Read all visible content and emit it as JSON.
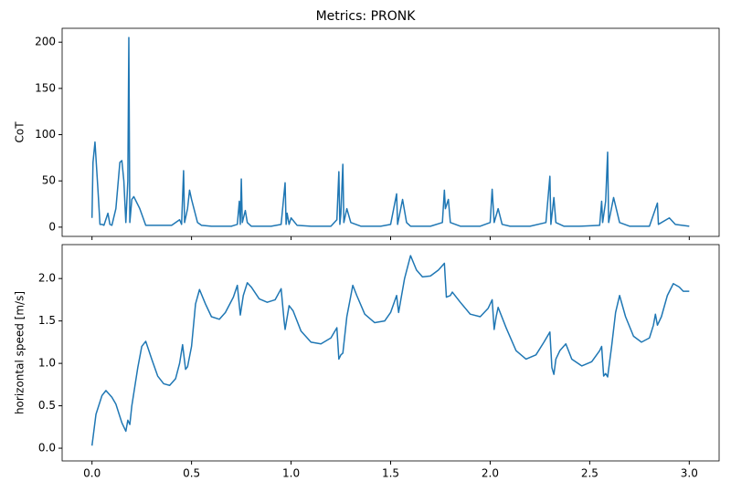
{
  "chart_data": [
    {
      "type": "line",
      "title": "Metrics: PRONK",
      "ylabel": "CoT",
      "color": "#1f77b4",
      "x": [
        0,
        0.005,
        0.015,
        0.03,
        0.04,
        0.05,
        0.06,
        0.08,
        0.09,
        0.1,
        0.12,
        0.14,
        0.15,
        0.16,
        0.17,
        0.18,
        0.185,
        0.19,
        0.2,
        0.21,
        0.24,
        0.27,
        0.3,
        0.35,
        0.4,
        0.44,
        0.45,
        0.46,
        0.465,
        0.48,
        0.49,
        0.5,
        0.53,
        0.55,
        0.6,
        0.65,
        0.7,
        0.73,
        0.74,
        0.745,
        0.75,
        0.755,
        0.77,
        0.78,
        0.8,
        0.85,
        0.9,
        0.95,
        0.97,
        0.975,
        0.98,
        0.99,
        1.0,
        1.03,
        1.1,
        1.2,
        1.23,
        1.24,
        1.245,
        1.25,
        1.26,
        1.265,
        1.28,
        1.3,
        1.35,
        1.45,
        1.5,
        1.53,
        1.535,
        1.56,
        1.58,
        1.6,
        1.7,
        1.76,
        1.77,
        1.775,
        1.79,
        1.8,
        1.85,
        1.95,
        2.0,
        2.01,
        2.02,
        2.04,
        2.06,
        2.1,
        2.2,
        2.28,
        2.3,
        2.305,
        2.32,
        2.33,
        2.37,
        2.45,
        2.55,
        2.56,
        2.565,
        2.58,
        2.59,
        2.595,
        2.62,
        2.65,
        2.7,
        2.8,
        2.84,
        2.845,
        2.9,
        2.93,
        3.0
      ],
      "values": [
        10,
        70,
        92,
        40,
        3,
        3,
        2,
        15,
        3,
        2,
        20,
        70,
        72,
        50,
        5,
        50,
        205,
        5,
        30,
        33,
        20,
        2,
        2,
        2,
        2,
        8,
        3,
        61,
        5,
        20,
        40,
        30,
        5,
        2,
        1,
        1,
        1,
        3,
        28,
        3,
        52,
        5,
        18,
        5,
        1,
        1,
        1,
        3,
        48,
        3,
        15,
        3,
        10,
        2,
        1,
        1,
        8,
        60,
        3,
        14,
        68,
        5,
        20,
        5,
        1,
        1,
        3,
        36,
        3,
        30,
        5,
        1,
        1,
        5,
        40,
        20,
        30,
        5,
        1,
        1,
        5,
        41,
        5,
        20,
        3,
        1,
        1,
        5,
        55,
        3,
        32,
        5,
        1,
        1,
        2,
        28,
        5,
        28,
        81,
        5,
        32,
        5,
        1,
        1,
        26,
        3,
        10,
        3,
        1
      ],
      "xlim": [
        -0.15,
        3.15
      ],
      "ylim": [
        -10,
        215
      ],
      "yticks": [
        0,
        50,
        100,
        150,
        200
      ]
    },
    {
      "type": "line",
      "ylabel": "horizontal speed [m/s]",
      "color": "#1f77b4",
      "x": [
        0,
        0.02,
        0.05,
        0.07,
        0.1,
        0.12,
        0.15,
        0.17,
        0.18,
        0.19,
        0.2,
        0.23,
        0.25,
        0.27,
        0.3,
        0.33,
        0.36,
        0.39,
        0.42,
        0.44,
        0.455,
        0.47,
        0.48,
        0.5,
        0.52,
        0.54,
        0.57,
        0.6,
        0.64,
        0.67,
        0.71,
        0.73,
        0.745,
        0.76,
        0.78,
        0.8,
        0.84,
        0.88,
        0.92,
        0.95,
        0.965,
        0.97,
        0.99,
        1.01,
        1.05,
        1.1,
        1.15,
        1.2,
        1.23,
        1.24,
        1.25,
        1.26,
        1.28,
        1.31,
        1.33,
        1.37,
        1.42,
        1.47,
        1.5,
        1.53,
        1.54,
        1.57,
        1.6,
        1.63,
        1.66,
        1.7,
        1.74,
        1.77,
        1.78,
        1.8,
        1.81,
        1.85,
        1.9,
        1.95,
        1.99,
        2.01,
        2.02,
        2.03,
        2.04,
        2.08,
        2.13,
        2.18,
        2.23,
        2.27,
        2.3,
        2.31,
        2.32,
        2.33,
        2.35,
        2.38,
        2.41,
        2.46,
        2.51,
        2.55,
        2.56,
        2.57,
        2.58,
        2.59,
        2.61,
        2.63,
        2.65,
        2.68,
        2.72,
        2.76,
        2.8,
        2.82,
        2.83,
        2.84,
        2.86,
        2.89,
        2.92,
        2.95,
        2.97,
        3.0
      ],
      "values": [
        0.03,
        0.4,
        0.62,
        0.68,
        0.6,
        0.52,
        0.3,
        0.2,
        0.33,
        0.28,
        0.5,
        0.95,
        1.2,
        1.26,
        1.05,
        0.85,
        0.76,
        0.74,
        0.82,
        1.0,
        1.22,
        0.93,
        0.96,
        1.2,
        1.7,
        1.87,
        1.7,
        1.55,
        1.52,
        1.6,
        1.78,
        1.92,
        1.57,
        1.8,
        1.95,
        1.9,
        1.76,
        1.72,
        1.75,
        1.88,
        1.5,
        1.4,
        1.68,
        1.62,
        1.38,
        1.25,
        1.23,
        1.3,
        1.42,
        1.05,
        1.1,
        1.12,
        1.55,
        1.92,
        1.8,
        1.58,
        1.48,
        1.5,
        1.6,
        1.8,
        1.6,
        2.0,
        2.27,
        2.1,
        2.02,
        2.03,
        2.1,
        2.18,
        1.78,
        1.8,
        1.84,
        1.72,
        1.58,
        1.55,
        1.65,
        1.75,
        1.4,
        1.55,
        1.66,
        1.42,
        1.15,
        1.05,
        1.1,
        1.25,
        1.37,
        0.95,
        0.87,
        1.05,
        1.15,
        1.23,
        1.05,
        0.97,
        1.02,
        1.15,
        1.2,
        0.85,
        0.88,
        0.84,
        1.2,
        1.6,
        1.8,
        1.55,
        1.32,
        1.25,
        1.3,
        1.45,
        1.58,
        1.45,
        1.55,
        1.8,
        1.94,
        1.9,
        1.85,
        1.85
      ],
      "xlim": [
        -0.15,
        3.15
      ],
      "ylim": [
        -0.15,
        2.4
      ],
      "yticks": [
        {
          "value": 0,
          "label": "0.0"
        },
        0.5,
        {
          "value": 1,
          "label": "1.0"
        },
        1.5,
        {
          "value": 2,
          "label": "2.0"
        }
      ],
      "xticks": [
        {
          "value": 0,
          "label": "0.0"
        },
        0.5,
        {
          "value": 1,
          "label": "1.0"
        },
        1.5,
        {
          "value": 2,
          "label": "2.0"
        },
        2.5,
        {
          "value": 3,
          "label": "3.0"
        }
      ]
    }
  ]
}
